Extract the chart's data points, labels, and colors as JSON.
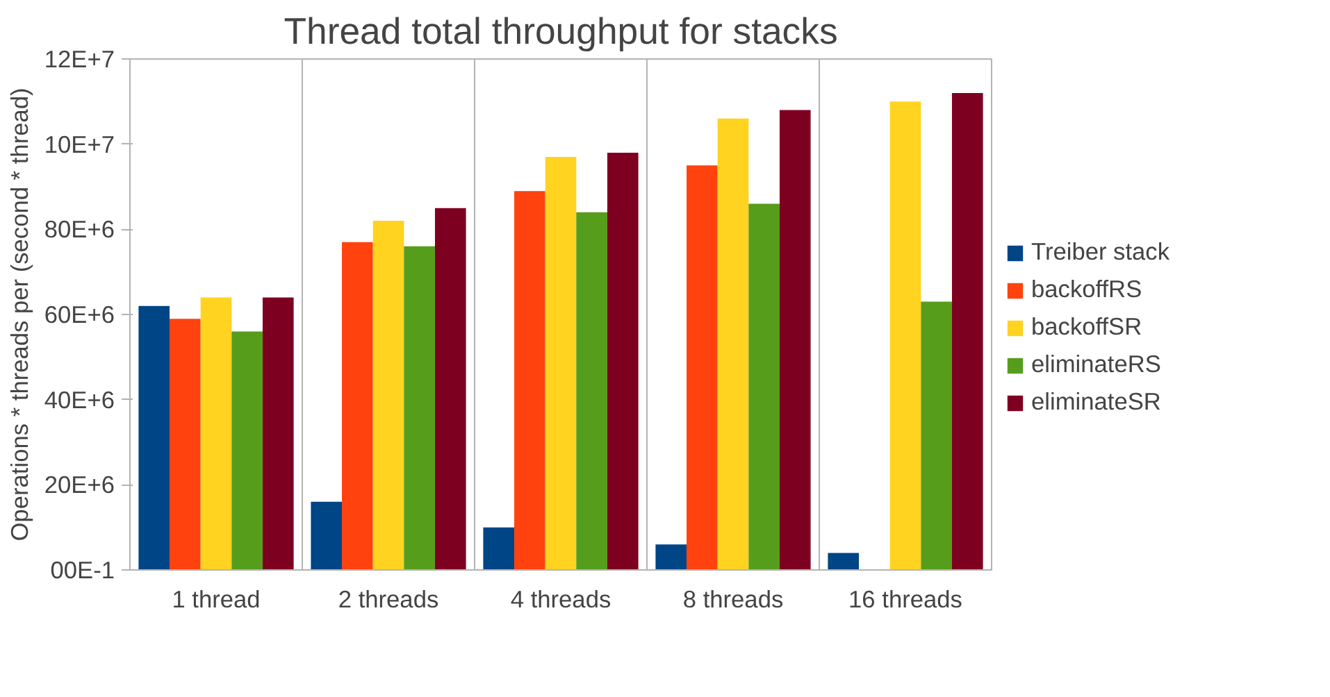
{
  "chart_data": {
    "type": "bar",
    "title": "Thread total throughput for stacks",
    "ylabel": "Operations * threads per (second * thread)",
    "categories": [
      "1 thread",
      "2 threads",
      "4 threads",
      "8 threads",
      "16 threads"
    ],
    "series": [
      {
        "name": "Treiber stack",
        "color": "#004586",
        "values": [
          62000000,
          16000000,
          10000000,
          6000000,
          4000000
        ]
      },
      {
        "name": "backoffRS",
        "color": "#ff420e",
        "values": [
          59000000,
          77000000,
          89000000,
          95000000,
          null
        ]
      },
      {
        "name": "backoffSR",
        "color": "#ffd320",
        "values": [
          64000000,
          82000000,
          97000000,
          106000000,
          110000000
        ]
      },
      {
        "name": "eliminateRS",
        "color": "#579d1c",
        "values": [
          56000000,
          76000000,
          84000000,
          86000000,
          63000000
        ]
      },
      {
        "name": "eliminateSR",
        "color": "#7e0021",
        "values": [
          64000000,
          85000000,
          98000000,
          108000000,
          112000000
        ]
      }
    ],
    "ylim": [
      0,
      120000000
    ],
    "yticks": [
      {
        "value": 0,
        "label": "00E-1"
      },
      {
        "value": 20000000,
        "label": "20E+6"
      },
      {
        "value": 40000000,
        "label": "40E+6"
      },
      {
        "value": 60000000,
        "label": "60E+6"
      },
      {
        "value": 80000000,
        "label": "80E+6"
      },
      {
        "value": 100000000,
        "label": "10E+7"
      },
      {
        "value": 120000000,
        "label": "12E+7"
      }
    ],
    "grid": "x",
    "legend": "right"
  }
}
